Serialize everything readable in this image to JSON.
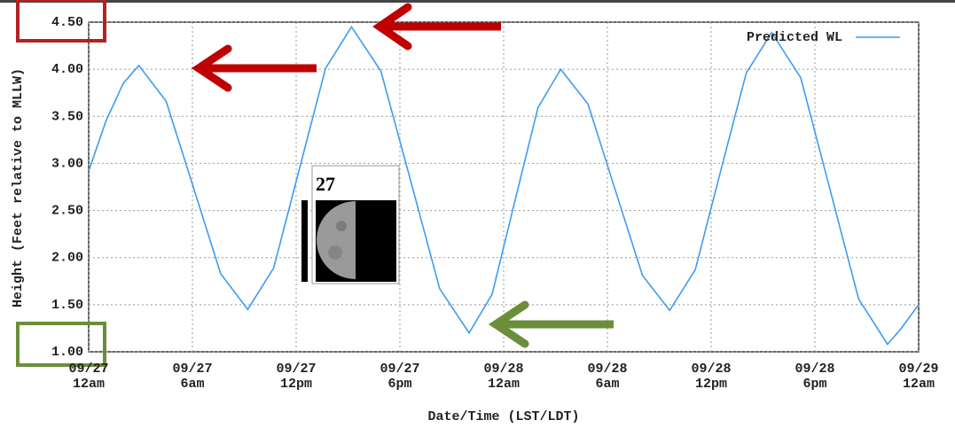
{
  "chart_data": {
    "type": "line",
    "x_label": "Date/Time (LST/LDT)",
    "y_label": "Height (Feet relative to MLLW)",
    "x": [
      0,
      1,
      2,
      2.9,
      4.48,
      6.05,
      7.63,
      9.2,
      10.7,
      12.2,
      13.7,
      15.2,
      16.9,
      18.6,
      20.3,
      22,
      23.33,
      24.65,
      25.98,
      27.3,
      28.88,
      30.45,
      32.03,
      33.6,
      35.08,
      36.55,
      38.03,
      39.5,
      41.18,
      42.85,
      44.53,
      46.2,
      47,
      48
    ],
    "series": [
      {
        "name": "Predicted WL",
        "color": "#3d9cf0",
        "values": [
          2.92,
          3.45,
          3.85,
          4.04,
          3.66,
          2.75,
          1.83,
          1.45,
          1.89,
          2.95,
          4.01,
          4.45,
          3.98,
          2.83,
          1.67,
          1.2,
          1.61,
          2.6,
          3.59,
          4.0,
          3.63,
          2.72,
          1.81,
          1.44,
          1.87,
          2.92,
          3.96,
          4.39,
          3.91,
          2.74,
          1.56,
          1.08,
          1.25,
          1.5
        ]
      }
    ],
    "xlim": [
      0,
      48
    ],
    "xticks": [
      {
        "value": 0,
        "label": "09/27\n12am"
      },
      {
        "value": 6,
        "label": "09/27\n6am"
      },
      {
        "value": 12,
        "label": "09/27\n12pm"
      },
      {
        "value": 18,
        "label": "09/27\n6pm"
      },
      {
        "value": 24,
        "label": "09/28\n12am"
      },
      {
        "value": 30,
        "label": "09/28\n6am"
      },
      {
        "value": 36,
        "label": "09/28\n12pm"
      },
      {
        "value": 42,
        "label": "09/28\n6pm"
      },
      {
        "value": 48,
        "label": "09/29\n12am"
      }
    ],
    "ylim": [
      1,
      4.5
    ],
    "yticks": [
      {
        "value": 1,
        "label": "1.00"
      },
      {
        "value": 1.5,
        "label": "1.50"
      },
      {
        "value": 2,
        "label": "2.00"
      },
      {
        "value": 2.5,
        "label": "2.50"
      },
      {
        "value": 3,
        "label": "3.00"
      },
      {
        "value": 3.5,
        "label": "3.50"
      },
      {
        "value": 4,
        "label": "4.00"
      },
      {
        "value": 4.5,
        "label": "4.50"
      }
    ],
    "grid": true,
    "legend": "top-right",
    "annotation": "27"
  }
}
